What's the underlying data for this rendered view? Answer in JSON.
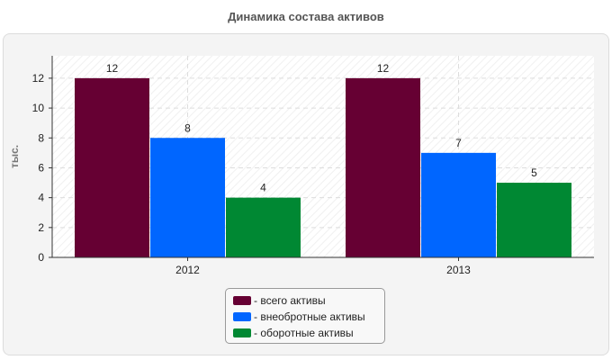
{
  "chart_data": {
    "type": "bar",
    "title": "Динамика состава активов",
    "ylabel": "тыс.",
    "xlabel": "",
    "categories": [
      "2012",
      "2013"
    ],
    "ylim": [
      0,
      13.5
    ],
    "yticks": [
      0,
      2,
      4,
      6,
      8,
      10,
      12
    ],
    "grid": true,
    "legend_position": "bottom-center",
    "series": [
      {
        "name": "- всего активы",
        "color": "#660033",
        "values": [
          12,
          12
        ]
      },
      {
        "name": "- внеобротные активы",
        "color": "#0066ff",
        "values": [
          8,
          7
        ]
      },
      {
        "name": "- оборотные активы",
        "color": "#008833",
        "values": [
          4,
          5
        ]
      }
    ]
  }
}
